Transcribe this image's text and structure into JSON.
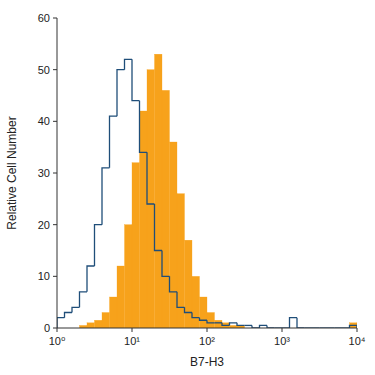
{
  "chart_data": {
    "type": "histogram",
    "x_label": "B7-H3",
    "y_label": "Relative Cell Number",
    "log": "x",
    "bins": [
      1,
      1.259,
      1.585,
      1.995,
      2.512,
      3.162,
      3.981,
      5.012,
      6.31,
      7.943,
      10,
      12.59,
      15.85,
      19.95,
      25.12,
      31.62,
      39.81,
      50.12,
      63.1,
      79.43,
      100,
      125.9,
      158.5,
      199.5,
      251.2,
      316.2,
      398.1,
      501.2,
      631,
      794.3,
      1000,
      1259,
      1585,
      1995,
      2512,
      3162,
      3981,
      5012,
      6310,
      7943,
      10000
    ],
    "series": [
      {
        "type": "bar",
        "color": "#f7a21b",
        "values": [
          0,
          0,
          0,
          0.5,
          1,
          1.5,
          3,
          6,
          12,
          20,
          32,
          42,
          50,
          53,
          46,
          36,
          26,
          17,
          10,
          6,
          3,
          1.5,
          1,
          0.5,
          0.5,
          0,
          0,
          0,
          0,
          0,
          0,
          0,
          0,
          0,
          0,
          0,
          0,
          0,
          0,
          1
        ]
      },
      {
        "type": "step",
        "color": "#1f4e79",
        "values": [
          2,
          3,
          4,
          7,
          12,
          20,
          31,
          41,
          50,
          52,
          44,
          34,
          24,
          15,
          10,
          7,
          4,
          3,
          2,
          1.5,
          1,
          1,
          0.5,
          1,
          0.5,
          0.5,
          0,
          0.5,
          0,
          0,
          0,
          2,
          0,
          0,
          0,
          0,
          0,
          0,
          0,
          0.5
        ]
      }
    ],
    "xlim": [
      1,
      10000
    ],
    "xticks": [
      {
        "value": 1,
        "label": "10⁰"
      },
      {
        "value": 10,
        "label": "10¹"
      },
      {
        "value": 100,
        "label": "10²"
      },
      {
        "value": 1000,
        "label": "10³"
      },
      {
        "value": 10000,
        "label": "10⁴"
      }
    ],
    "ylim": [
      0,
      60
    ],
    "yticks": [
      0,
      10,
      20,
      30,
      40,
      50,
      60
    ]
  }
}
